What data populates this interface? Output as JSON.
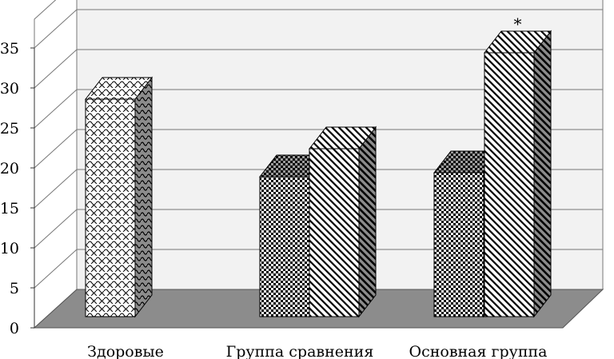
{
  "chart_data": {
    "type": "bar",
    "categories": [
      "Здоровые",
      "Группа сравнения",
      "Основная группа"
    ],
    "bars": [
      {
        "category": 0,
        "value": 27.2,
        "pattern": "scales"
      },
      {
        "category": 1,
        "value": 17.5,
        "pattern": "checker"
      },
      {
        "category": 1,
        "value": 21.0,
        "pattern": "diagonal"
      },
      {
        "category": 2,
        "value": 18.0,
        "pattern": "checker"
      },
      {
        "category": 2,
        "value": 33.0,
        "pattern": "diagonal",
        "annotation": "*"
      }
    ],
    "yticks": [
      "0",
      "5",
      "10",
      "15",
      "20",
      "25",
      "30",
      "35"
    ],
    "ylim": [
      0,
      35
    ],
    "grid": true,
    "three_d": true,
    "title": "",
    "xlabel": "",
    "ylabel": ""
  }
}
